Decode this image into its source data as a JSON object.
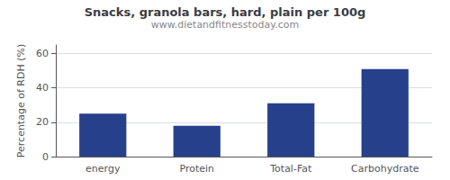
{
  "chart_data": {
    "type": "bar",
    "title": "Snacks, granola bars, hard, plain per 100g",
    "subtitle": "www.dietandfitnesstoday.com",
    "categories": [
      "energy",
      "Protein",
      "Total-Fat",
      "Carbohydrate"
    ],
    "values": [
      25,
      18,
      31,
      51
    ],
    "color": "#27408B",
    "ylabel": "Percentage of RDH (%)",
    "ylim": [
      0,
      65
    ],
    "yticks": [
      0,
      20,
      40,
      60
    ],
    "grid": true
  }
}
